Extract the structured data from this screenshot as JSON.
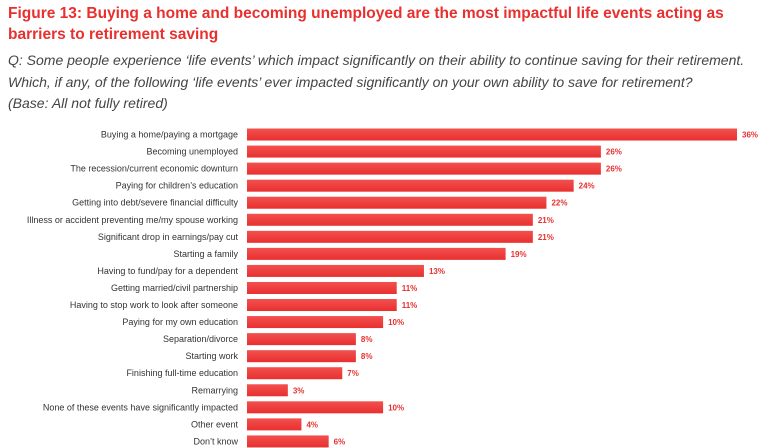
{
  "header": {
    "title": "Figure 13: Buying a home and becoming unemployed are the most impactful life events acting as barriers to retirement saving",
    "question_line1": "Q: Some people experience ‘life events’ which impact significantly on their ability to continue saving for their retirement.",
    "question_line2": "Which, if any, of the following ‘life events’ ever impacted significantly on your own ability to save for retirement?",
    "base": "(Base: All not fully retired)"
  },
  "colors": {
    "bar": "#e8302f",
    "bar_highlight": "#f2504e",
    "title": "#e8302f",
    "label": "#333333"
  },
  "chart_data": {
    "type": "bar",
    "orientation": "horizontal",
    "title": "Figure 13: Buying a home and becoming unemployed are the most impactful life events acting as barriers to retirement saving",
    "xlabel": "",
    "ylabel": "",
    "xlim": [
      0,
      36
    ],
    "unit": "%",
    "categories": [
      "Buying a home/paying a mortgage",
      "Becoming unemployed",
      "The recession/current economic downturn",
      "Paying for children’s education",
      "Getting into debt/severe financial difficulty",
      "Illness or accident preventing me/my spouse working",
      "Significant drop in earnings/pay cut",
      "Starting a family",
      "Having to fund/pay for a dependent",
      "Getting married/civil partnership",
      "Having to stop work to look after someone",
      "Paying for my own education",
      "Separation/divorce",
      "Starting work",
      "Finishing full-time education",
      "Remarrying",
      "None of these events have significantly impacted",
      "Other event",
      "Don’t know"
    ],
    "values": [
      36,
      26,
      26,
      24,
      22,
      21,
      21,
      19,
      13,
      11,
      11,
      10,
      8,
      8,
      7,
      3,
      10,
      4,
      6
    ],
    "value_labels": [
      "36%",
      "26%",
      "26%",
      "24%",
      "22%",
      "21%",
      "21%",
      "19%",
      "13%",
      "11%",
      "11%",
      "10%",
      "8%",
      "8%",
      "7%",
      "3%",
      "10%",
      "4%",
      "6%"
    ]
  }
}
